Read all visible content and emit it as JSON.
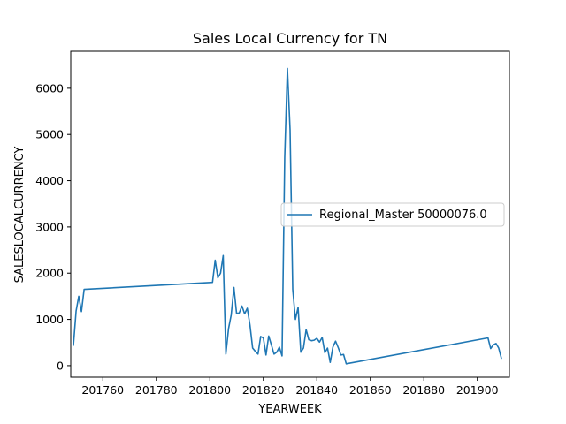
{
  "chart_data": {
    "type": "line",
    "title": "Sales Local Currency for TN",
    "xlabel": "YEARWEEK",
    "ylabel": "SALESLOCALCURRENCY",
    "xlim": [
      201748,
      201912
    ],
    "ylim": [
      -250,
      6800
    ],
    "xticks": [
      201760,
      201780,
      201800,
      201820,
      201840,
      201860,
      201880,
      201900
    ],
    "xtick_labels": [
      "201760",
      "201780",
      "201800",
      "201820",
      "201840",
      "201860",
      "201880",
      "201900"
    ],
    "yticks": [
      0,
      1000,
      2000,
      3000,
      4000,
      5000,
      6000
    ],
    "ytick_labels": [
      "0",
      "1000",
      "2000",
      "3000",
      "4000",
      "5000",
      "6000"
    ],
    "grid": false,
    "legend_position": "center-right",
    "colors": {
      "series": "#1f77b4"
    },
    "series": [
      {
        "name": "Regional_Master 50000076.0",
        "x": [
          201749,
          201750,
          201751,
          201752,
          201753,
          201801,
          201802,
          201803,
          201804,
          201805,
          201806,
          201807,
          201808,
          201809,
          201810,
          201811,
          201812,
          201813,
          201814,
          201815,
          201816,
          201817,
          201818,
          201819,
          201820,
          201821,
          201822,
          201823,
          201824,
          201825,
          201826,
          201827,
          201828,
          201829,
          201830,
          201831,
          201832,
          201833,
          201834,
          201835,
          201836,
          201837,
          201838,
          201839,
          201840,
          201841,
          201842,
          201843,
          201844,
          201845,
          201846,
          201847,
          201848,
          201849,
          201850,
          201851,
          201904,
          201905,
          201906,
          201907,
          201908,
          201909
        ],
        "values": [
          440,
          1180,
          1500,
          1170,
          1650,
          1800,
          2280,
          1900,
          2000,
          2380,
          250,
          800,
          1100,
          1690,
          1130,
          1140,
          1290,
          1120,
          1240,
          880,
          380,
          310,
          250,
          630,
          600,
          230,
          640,
          450,
          250,
          290,
          400,
          210,
          4500,
          6430,
          5100,
          1650,
          1000,
          1260,
          290,
          380,
          780,
          560,
          540,
          550,
          590,
          510,
          610,
          280,
          380,
          70,
          400,
          530,
          390,
          230,
          240,
          40,
          600,
          370,
          450,
          480,
          380,
          160
        ]
      }
    ]
  }
}
